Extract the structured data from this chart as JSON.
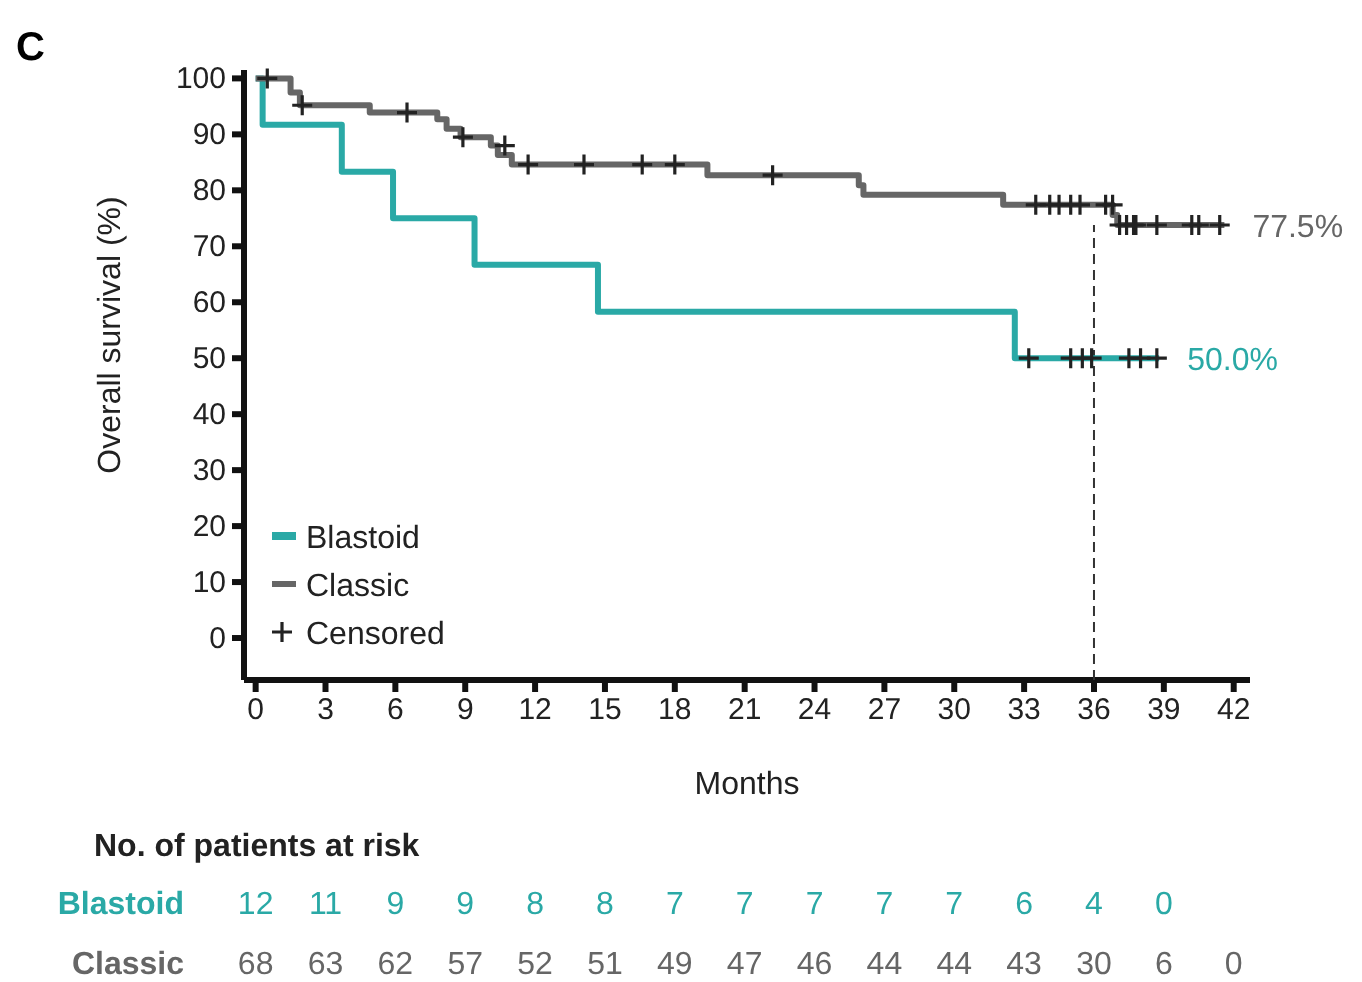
{
  "chart_data": {
    "type": "step",
    "xlabel": "Months",
    "ylabel": "Overall survival (%)",
    "xlim": [
      -0.5,
      42.7
    ],
    "xticks": [
      0,
      3,
      6,
      9,
      12,
      15,
      18,
      21,
      24,
      27,
      30,
      33,
      36,
      39,
      42
    ],
    "ylim": [
      -7.5,
      101.5
    ],
    "yticks": [
      0,
      10,
      20,
      30,
      40,
      50,
      60,
      70,
      80,
      90,
      100
    ],
    "grid": false,
    "legend": "bottom left",
    "series": [
      {
        "name": "Blastoid",
        "color": "#2aa9a6",
        "x": [
          0,
          0.3,
          3.7,
          5.9,
          9.4,
          14.7,
          32.6,
          38.8
        ],
        "values": [
          100,
          91.7,
          83.3,
          75,
          66.7,
          58.3,
          50,
          50
        ]
      },
      {
        "name": "Classic",
        "color": "#666666",
        "x": [
          0,
          1.5,
          1.9,
          4.9,
          7.8,
          8.2,
          8.8,
          10.1,
          10.4,
          11.0,
          19.4,
          25.9,
          26.1,
          32.1,
          36.8,
          37.0,
          41.6
        ],
        "values": [
          100,
          97.5,
          95.2,
          93.9,
          92.7,
          91,
          89.5,
          88,
          86.3,
          84.6,
          82.7,
          80.9,
          79.2,
          77.4,
          75.6,
          73.8,
          73.8
        ]
      },
      {
        "name": "Censored",
        "color": "#222222",
        "type": "scatter",
        "marker": "cross",
        "x": [
          0.5,
          2.0,
          6.5,
          8.9,
          10.7,
          11.7,
          14.1,
          16.6,
          18.0,
          22.2,
          33.5,
          34.1,
          34.5,
          35.0,
          35.4,
          36.5,
          36.8,
          37.1,
          37.4,
          37.7,
          37.8,
          38.7,
          40.2,
          40.5,
          41.4,
          33.2,
          35.0,
          35.5,
          35.9,
          37.5,
          38.0,
          38.7
        ],
        "values": [
          100,
          95.2,
          93.9,
          89.5,
          88,
          84.6,
          84.6,
          84.6,
          84.6,
          82.7,
          77.4,
          77.4,
          77.4,
          77.4,
          77.4,
          77.4,
          77.4,
          73.8,
          73.8,
          73.8,
          73.8,
          73.8,
          73.8,
          73.8,
          73.8,
          50,
          50,
          50,
          50,
          50,
          50,
          50
        ]
      }
    ],
    "ref_lines": [
      {
        "axis": "x",
        "value": 36,
        "color": "#333333",
        "line_style": "dashed"
      }
    ],
    "annotations": [
      "50.0%",
      "77.5%",
      "C",
      "No. of patients at risk",
      "Blastoid",
      "12",
      "11",
      "9",
      "9",
      "8",
      "8",
      "7",
      "7",
      "7",
      "7",
      "7",
      "6",
      "4",
      "0",
      "Classic",
      "68",
      "63",
      "62",
      "57",
      "52",
      "51",
      "49",
      "47",
      "46",
      "44",
      "44",
      "43",
      "30",
      "6",
      "0"
    ]
  }
}
